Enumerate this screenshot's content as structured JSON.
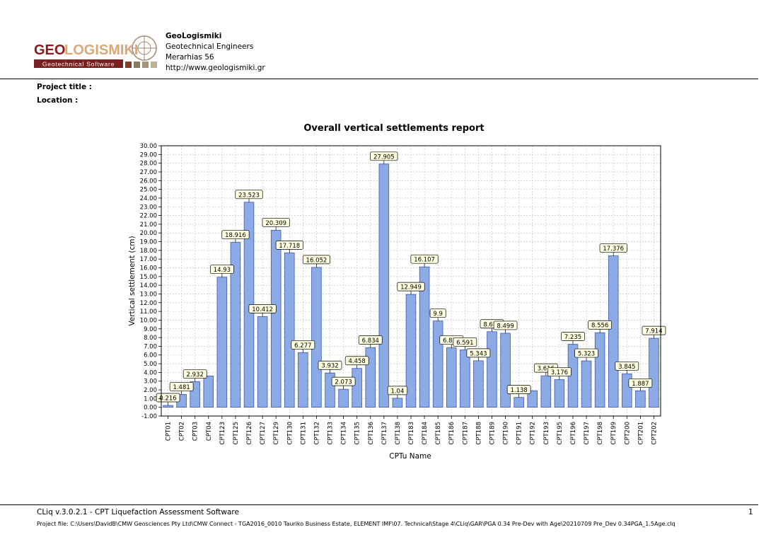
{
  "header": {
    "logo_text_left": "GEO",
    "logo_text_right": "LOGISMIKI",
    "logo_tagline": "Geotechnical Software",
    "company_name": "GeoLogismiki",
    "company_line2": "Geotechnical Engineers",
    "company_line3": "Merarhias 56",
    "company_line4": "http://www.geologismiki.gr"
  },
  "meta": {
    "project_title_label": "Project title :",
    "location_label": "Location :"
  },
  "footer": {
    "app": "CLiq v.3.0.2.1 - CPT Liquefaction Assessment Software",
    "project_file": "Project file: C:\\Users\\DavidB\\CMW Geosciences Pty Ltd\\CMW Connect - TGA2016_0010 Tauriko Business Estate, ELEMENT IMF\\07. Technical\\Stage 4\\CLiq\\GAR\\PGA 0.34 Pre-Dev with Age\\20210709 Pre_Dev 0.34PGA_1.5Age.clq",
    "page_number": "1"
  },
  "colors": {
    "bar_fill": "#8CAAE6",
    "bar_stroke": "#3A5BA8",
    "label_fill": "#FFFFE1",
    "grid": "#BFBFBF"
  },
  "chart_data": {
    "type": "bar",
    "title": "Overall vertical settlements report",
    "xlabel": "CPTu Name",
    "ylabel": "Vertical settlement (cm)",
    "ylim": [
      -1,
      30
    ],
    "ytick_step": 1,
    "ytick_decimals": 2,
    "grid": true,
    "categories": [
      "CPT01",
      "CPT02",
      "CPT03",
      "CPT04",
      "CPT123",
      "CPT125",
      "CPT126",
      "CPT127",
      "CPT129",
      "CPT130",
      "CPT131",
      "CPT132",
      "CPT133",
      "CPT134",
      "CPT135",
      "CPT136",
      "CPT137",
      "CPT138",
      "CPT183",
      "CPT184",
      "CPT185",
      "CPT186",
      "CPT187",
      "CPT188",
      "CPT189",
      "CPT190",
      "CPT191",
      "CPT192",
      "CPT193",
      "CPT195",
      "CPT196",
      "CPT197",
      "CPT198",
      "CPT199",
      "CPT200",
      "CPT201",
      "CPT202"
    ],
    "values": [
      0.216,
      1.481,
      2.932,
      3.6,
      14.93,
      18.916,
      23.523,
      10.412,
      20.309,
      17.718,
      6.277,
      16.052,
      3.932,
      2.073,
      4.458,
      6.834,
      27.905,
      1.04,
      12.949,
      16.107,
      9.9,
      6.826,
      6.591,
      5.343,
      8.675,
      8.499,
      1.138,
      1.9,
      3.616,
      3.176,
      7.235,
      5.323,
      8.556,
      17.376,
      3.845,
      1.887,
      7.914
    ],
    "data_labels": [
      "0.216",
      "1.481",
      "2.932",
      null,
      "14.93",
      "18.916",
      "23.523",
      "10.412",
      "20.309",
      "17.718",
      "6.277",
      "16.052",
      "3.932",
      "2.073",
      "4.458",
      "6.834",
      "27.905",
      "1.04",
      "12.949",
      "16.107",
      "9.9",
      "6.826",
      "6.591",
      "5.343",
      "8.675",
      "8.499",
      "1.138",
      null,
      "3.616",
      "3.176",
      "7.235",
      "5.323",
      "8.556",
      "17.376",
      "3.845",
      "1.887",
      "7.914"
    ]
  }
}
